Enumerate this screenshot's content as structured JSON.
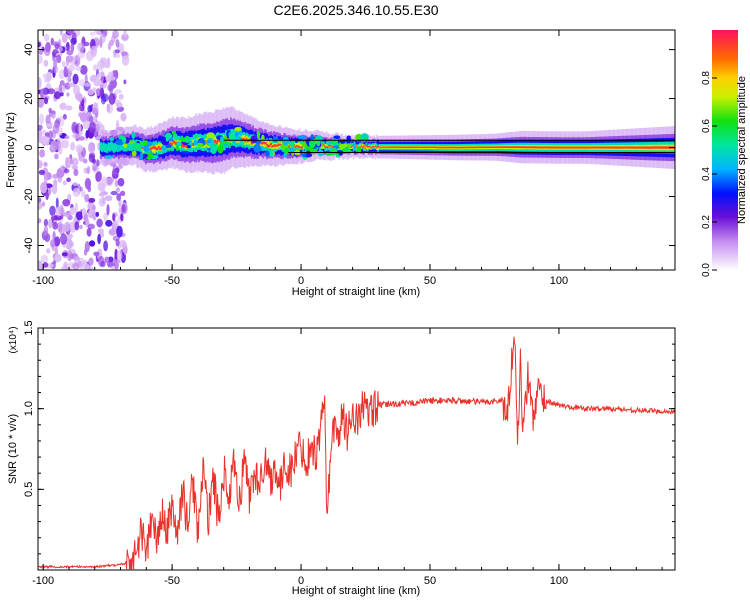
{
  "title": "C2E6.2025.346.10.55.E30",
  "chart_data": [
    {
      "type": "heatmap",
      "xlabel": "Height of straight line (km)",
      "ylabel": "Frequency (Hz)",
      "xlim": [
        -102,
        145
      ],
      "ylim": [
        -50,
        48
      ],
      "xticks": [
        -100,
        -50,
        0,
        50,
        100
      ],
      "yticks": [
        -40,
        -20,
        0,
        20,
        40
      ],
      "colorbar": {
        "label": "Normalized spectral amplitude",
        "range": [
          0,
          1
        ],
        "ticks": [
          0.0,
          0.2,
          0.4,
          0.6,
          0.8
        ]
      },
      "noise_region_x": [
        -102,
        -68
      ],
      "ridge": {
        "x": [
          -75,
          -65,
          -60,
          -55,
          -50,
          -45,
          -40,
          -35,
          -30,
          -27,
          -22,
          -18,
          -12,
          -5,
          0,
          5,
          10,
          20,
          30,
          60,
          80,
          100,
          145
        ],
        "frequency": [
          0,
          1,
          -1,
          0,
          2,
          1,
          2,
          2,
          3,
          4,
          3,
          2,
          1,
          0.5,
          0.5,
          1,
          0.5,
          0.3,
          0.2,
          0,
          0.2,
          0,
          0
        ]
      },
      "ridge_bandwidth_hz": [
        [
          -75,
          3
        ],
        [
          -60,
          4
        ],
        [
          -45,
          5
        ],
        [
          -30,
          6
        ],
        [
          -15,
          4
        ],
        [
          0,
          3
        ],
        [
          20,
          2
        ],
        [
          75,
          2.5
        ],
        [
          85,
          3
        ],
        [
          110,
          3
        ],
        [
          145,
          4
        ]
      ]
    },
    {
      "type": "line",
      "xlabel": "Height of straight line (km)",
      "ylabel": "SNR (10 * v/v)",
      "y_multiplier": "(x10⁴)",
      "xlim": [
        -102,
        145
      ],
      "ylim": [
        0,
        1.5
      ],
      "xticks": [
        -100,
        -50,
        0,
        50,
        100
      ],
      "yticks": [
        0.5,
        1.0,
        1.5
      ],
      "series": [
        {
          "name": "SNR",
          "color": "#e8322a",
          "x": [
            -102,
            -90,
            -80,
            -72,
            -68,
            -64,
            -62,
            -60,
            -58,
            -56,
            -54,
            -52,
            -50,
            -48,
            -46,
            -44,
            -42,
            -40,
            -38,
            -36,
            -34,
            -32,
            -30,
            -28,
            -26,
            -24,
            -22,
            -20,
            -18,
            -16,
            -14,
            -12,
            -10,
            -8,
            -6,
            -4,
            -2,
            0,
            2,
            4,
            6,
            8,
            9,
            10,
            12,
            14,
            16,
            18,
            20,
            22,
            24,
            26,
            28,
            30,
            35,
            40,
            50,
            60,
            70,
            78,
            80,
            82,
            83,
            84,
            85,
            86,
            88,
            90,
            92,
            95,
            100,
            110,
            120,
            130,
            145
          ],
          "y": [
            0.02,
            0.02,
            0.02,
            0.03,
            0.04,
            0.08,
            0.25,
            0.12,
            0.3,
            0.18,
            0.35,
            0.22,
            0.42,
            0.2,
            0.5,
            0.28,
            0.55,
            0.25,
            0.6,
            0.32,
            0.58,
            0.3,
            0.62,
            0.42,
            0.65,
            0.4,
            0.7,
            0.45,
            0.62,
            0.5,
            0.72,
            0.55,
            0.65,
            0.5,
            0.68,
            0.6,
            0.72,
            0.78,
            0.65,
            0.8,
            0.7,
            0.95,
            1.1,
            0.3,
            0.9,
            0.82,
            0.95,
            0.85,
            1.0,
            0.9,
            1.05,
            0.95,
            1.0,
            1.02,
            1.03,
            1.03,
            1.05,
            1.05,
            1.04,
            1.05,
            0.95,
            1.35,
            1.5,
            0.75,
            1.3,
            0.85,
            1.2,
            0.95,
            1.12,
            1.05,
            1.02,
            1.0,
            1.0,
            0.99,
            0.98
          ]
        }
      ]
    }
  ]
}
